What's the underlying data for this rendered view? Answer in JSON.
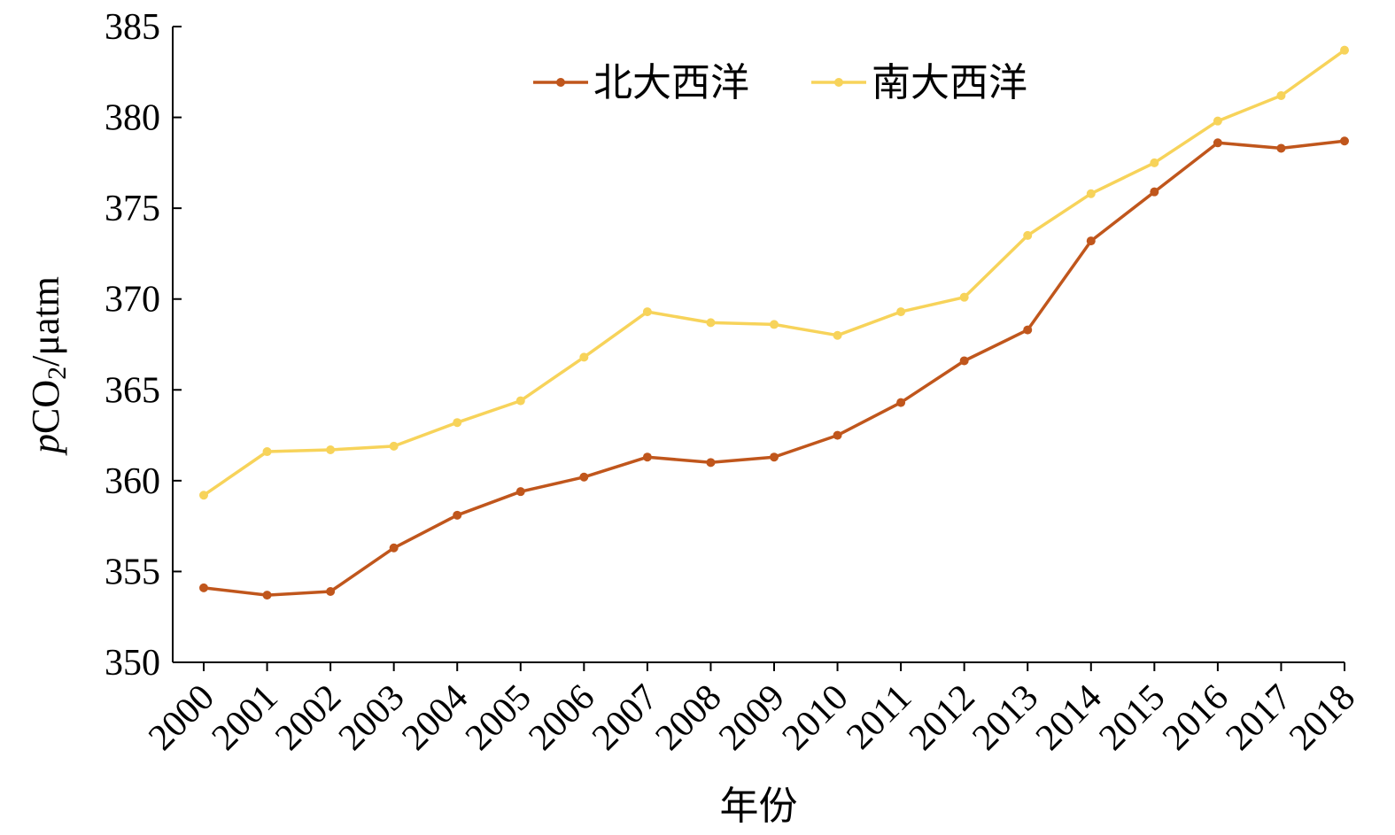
{
  "chart_data": {
    "type": "line",
    "title": "",
    "xlabel": "年份",
    "ylabel_italic": "p",
    "ylabel_main": "CO",
    "ylabel_sub": "2",
    "ylabel_unit": "/μatm",
    "ylim": [
      350,
      385
    ],
    "yticks": [
      350,
      355,
      360,
      365,
      370,
      375,
      380,
      385
    ],
    "grid": false,
    "legend_position": "top",
    "categories": [
      "2000",
      "2001",
      "2002",
      "2003",
      "2004",
      "2005",
      "2006",
      "2007",
      "2008",
      "2009",
      "2010",
      "2011",
      "2012",
      "2013",
      "2014",
      "2015",
      "2016",
      "2017",
      "2018"
    ],
    "series": [
      {
        "name": "北大西洋",
        "color": "#c0561c",
        "values": [
          354.1,
          353.7,
          353.9,
          356.3,
          358.1,
          359.4,
          360.2,
          361.3,
          361.0,
          361.3,
          362.5,
          364.3,
          366.6,
          368.3,
          373.2,
          375.9,
          378.6,
          378.3,
          378.7
        ]
      },
      {
        "name": "南大西洋",
        "color": "#f7d35a",
        "values": [
          359.2,
          361.6,
          361.7,
          361.9,
          363.2,
          364.4,
          366.8,
          369.3,
          368.7,
          368.6,
          368.0,
          369.3,
          370.1,
          373.5,
          375.8,
          377.5,
          379.8,
          381.2,
          383.7
        ]
      }
    ]
  }
}
